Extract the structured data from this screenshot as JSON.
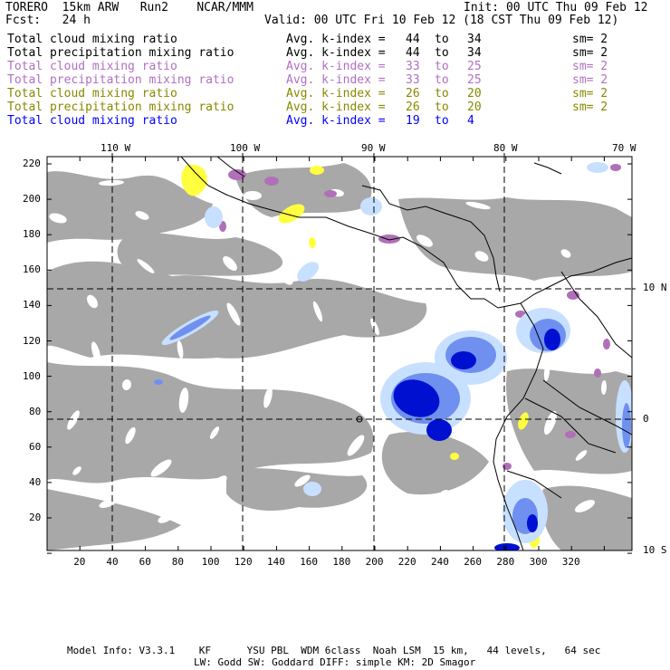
{
  "header": {
    "model": "TORERO  15km ARW   Run2    NCAR/MMM",
    "init": "Init: 00 UTC Thu 09 Feb 12",
    "fcst": "Fcst:   24 h",
    "valid": "Valid: 00 UTC Fri 10 Feb 12 (18 CST Thu 09 Feb 12)"
  },
  "legend": [
    {
      "name": "Total cloud mixing ratio",
      "avg": "Avg. k-index =",
      "lo": "44",
      "to": "to",
      "hi": "34",
      "sm": "sm= 2",
      "color": "#000000"
    },
    {
      "name": "Total precipitation mixing ratio",
      "avg": "Avg. k-index =",
      "lo": "44",
      "to": "to",
      "hi": "34",
      "sm": "sm= 2",
      "color": "#000000"
    },
    {
      "name": "Total cloud mixing ratio",
      "avg": "Avg. k-index =",
      "lo": "33",
      "to": "to",
      "hi": "25",
      "sm": "sm= 2",
      "color": "#b070c0"
    },
    {
      "name": "Total precipitation mixing ratio",
      "avg": "Avg. k-index =",
      "lo": "33",
      "to": "to",
      "hi": "25",
      "sm": "sm= 2",
      "color": "#b070c0"
    },
    {
      "name": "Total cloud mixing ratio",
      "avg": "Avg. k-index =",
      "lo": "26",
      "to": "to",
      "hi": "20",
      "sm": "sm= 2",
      "color": "#888800"
    },
    {
      "name": "Total precipitation mixing ratio",
      "avg": "Avg. k-index =",
      "lo": "26",
      "to": "to",
      "hi": "20",
      "sm": "sm= 2",
      "color": "#888800"
    },
    {
      "name": "Total cloud mixing ratio",
      "avg": "Avg. k-index =",
      "lo": "19",
      "to": "to",
      "hi": "4",
      "sm": "",
      "color": "#0000ff"
    }
  ],
  "map": {
    "lon_labels": [
      "110 W",
      "100 W",
      "90 W",
      "80 W",
      "70 W"
    ],
    "lat_labels": [
      "10 N",
      "0",
      "10 S"
    ],
    "x_ticks": [
      "20",
      "40",
      "60",
      "80",
      "100",
      "120",
      "140",
      "160",
      "180",
      "200",
      "220",
      "240",
      "260",
      "280",
      "300",
      "320"
    ],
    "y_ticks": [
      "220",
      "200",
      "180",
      "160",
      "140",
      "120",
      "100",
      "80",
      "60",
      "40",
      "20"
    ],
    "colors": {
      "gray_cloud": "#a8a8a8",
      "purple": "#b070b8",
      "yellow": "#ffff40",
      "light_blue": "#c8e0ff",
      "mid_blue": "#7090f0",
      "dark_blue": "#0010d0",
      "coast": "#000000"
    }
  },
  "footer": {
    "line1": "Model Info: V3.3.1    KF      YSU PBL  WDM 6class  Noah LSM  15 km,   44 levels,   64 sec",
    "line2": "LW: Godd SW: Goddard DIFF: simple KM: 2D Smagor"
  }
}
